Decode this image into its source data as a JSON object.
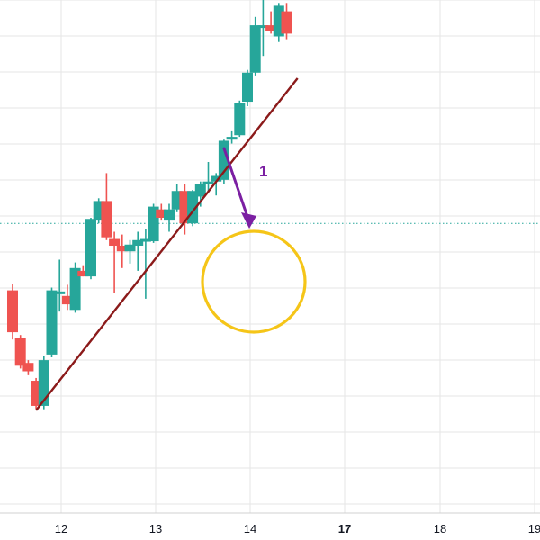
{
  "chart_data": {
    "type": "candlestick",
    "title": "",
    "xlabel": "",
    "ylabel": "",
    "x_ticks": [
      {
        "label": "12",
        "bold": false
      },
      {
        "label": "13",
        "bold": false
      },
      {
        "label": "14",
        "bold": false
      },
      {
        "label": "17",
        "bold": true
      },
      {
        "label": "18",
        "bold": false
      },
      {
        "label": "19",
        "bold": false
      }
    ],
    "ylim": [
      0,
      1000
    ],
    "grid": true,
    "reference_level": 590,
    "candles": [
      {
        "x": 0.0,
        "o": 470,
        "h": 482,
        "l": 382,
        "c": 395
      },
      {
        "x": 0.5,
        "o": 385,
        "h": 390,
        "l": 330,
        "c": 335
      },
      {
        "x": 1.0,
        "o": 340,
        "h": 345,
        "l": 318,
        "c": 325
      },
      {
        "x": 1.5,
        "o": 308,
        "h": 313,
        "l": 258,
        "c": 263
      },
      {
        "x": 2.0,
        "o": 263,
        "h": 352,
        "l": 257,
        "c": 345
      },
      {
        "x": 2.5,
        "o": 355,
        "h": 475,
        "l": 350,
        "c": 470
      },
      {
        "x": 3.0,
        "o": 468,
        "h": 525,
        "l": 432,
        "c": 468
      },
      {
        "x": 3.5,
        "o": 460,
        "h": 480,
        "l": 435,
        "c": 445
      },
      {
        "x": 4.0,
        "o": 435,
        "h": 520,
        "l": 430,
        "c": 510
      },
      {
        "x": 4.5,
        "o": 505,
        "h": 515,
        "l": 495,
        "c": 495
      },
      {
        "x": 5.0,
        "o": 495,
        "h": 600,
        "l": 490,
        "c": 598
      },
      {
        "x": 5.5,
        "o": 595,
        "h": 635,
        "l": 590,
        "c": 630
      },
      {
        "x": 6.0,
        "o": 630,
        "h": 680,
        "l": 560,
        "c": 565
      },
      {
        "x": 6.5,
        "o": 562,
        "h": 575,
        "l": 465,
        "c": 550
      },
      {
        "x": 7.0,
        "o": 550,
        "h": 570,
        "l": 510,
        "c": 540
      },
      {
        "x": 7.5,
        "o": 540,
        "h": 560,
        "l": 518,
        "c": 552
      },
      {
        "x": 8.0,
        "o": 550,
        "h": 575,
        "l": 505,
        "c": 560
      },
      {
        "x": 8.5,
        "o": 560,
        "h": 580,
        "l": 455,
        "c": 562
      },
      {
        "x": 9.0,
        "o": 558,
        "h": 625,
        "l": 555,
        "c": 620
      },
      {
        "x": 9.5,
        "o": 615,
        "h": 625,
        "l": 595,
        "c": 600
      },
      {
        "x": 10.0,
        "o": 595,
        "h": 625,
        "l": 575,
        "c": 615
      },
      {
        "x": 10.5,
        "o": 615,
        "h": 660,
        "l": 610,
        "c": 648
      },
      {
        "x": 11.0,
        "o": 648,
        "h": 660,
        "l": 570,
        "c": 590
      },
      {
        "x": 11.5,
        "o": 590,
        "h": 650,
        "l": 585,
        "c": 648
      },
      {
        "x": 12.0,
        "o": 638,
        "h": 665,
        "l": 620,
        "c": 660
      },
      {
        "x": 12.5,
        "o": 662,
        "h": 700,
        "l": 645,
        "c": 665
      },
      {
        "x": 13.0,
        "o": 665,
        "h": 680,
        "l": 640,
        "c": 675
      },
      {
        "x": 13.5,
        "o": 668,
        "h": 740,
        "l": 660,
        "c": 738
      },
      {
        "x": 14.0,
        "o": 740,
        "h": 755,
        "l": 733,
        "c": 745
      },
      {
        "x": 14.5,
        "o": 748,
        "h": 810,
        "l": 745,
        "c": 805
      },
      {
        "x": 15.0,
        "o": 808,
        "h": 865,
        "l": 800,
        "c": 860
      },
      {
        "x": 15.5,
        "o": 860,
        "h": 960,
        "l": 855,
        "c": 945
      },
      {
        "x": 16.0,
        "o": 945,
        "h": 1015,
        "l": 890,
        "c": 945
      },
      {
        "x": 16.5,
        "o": 945,
        "h": 970,
        "l": 930,
        "c": 935
      },
      {
        "x": 17.0,
        "o": 925,
        "h": 985,
        "l": 915,
        "c": 980
      },
      {
        "x": 17.5,
        "o": 970,
        "h": 985,
        "l": 920,
        "c": 930
      }
    ],
    "trendline": {
      "x1": 1.5,
      "y1": 255,
      "x2": 18.2,
      "y2": 850
    },
    "annotations": [
      {
        "type": "arrow",
        "label": "1",
        "color": "#7b1fa2"
      },
      {
        "type": "circle",
        "label": "",
        "color": "#f5c518"
      }
    ]
  },
  "colors": {
    "up": "#26a69a",
    "down": "#ef5350",
    "grid": "#e6e6e6",
    "reference": "#26a69a",
    "trendline": "#8b1a1a",
    "arrow": "#7b1fa2",
    "circle": "#f5c518"
  }
}
